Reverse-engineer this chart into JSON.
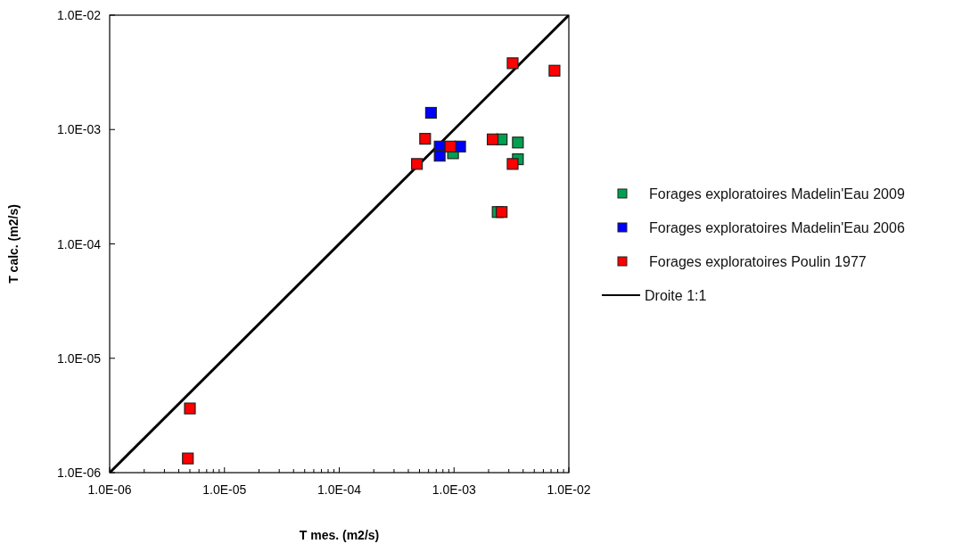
{
  "chart_data": {
    "type": "scatter",
    "xlabel": "T mes. (m2/s)",
    "ylabel": "T calc. (m2/s)",
    "log": "xy",
    "marker": "square",
    "legend": "right",
    "grid": false,
    "xlim": [
      1e-06,
      0.01
    ],
    "ylim": [
      1e-06,
      0.01
    ],
    "xticks": [
      {
        "value": 1e-06,
        "label": "1.0E-06"
      },
      {
        "value": 2e-06,
        "label": null
      },
      {
        "value": 3e-06,
        "label": null
      },
      {
        "value": 4e-06,
        "label": null
      },
      {
        "value": 5e-06,
        "label": null
      },
      {
        "value": 6e-06,
        "label": null
      },
      {
        "value": 7e-06,
        "label": null
      },
      {
        "value": 8e-06,
        "label": null
      },
      {
        "value": 9e-06,
        "label": null
      },
      {
        "value": 1e-05,
        "label": "1.0E-05"
      },
      {
        "value": 2e-05,
        "label": null
      },
      {
        "value": 3e-05,
        "label": null
      },
      {
        "value": 4e-05,
        "label": null
      },
      {
        "value": 5e-05,
        "label": null
      },
      {
        "value": 6e-05,
        "label": null
      },
      {
        "value": 7e-05,
        "label": null
      },
      {
        "value": 8e-05,
        "label": null
      },
      {
        "value": 9e-05,
        "label": null
      },
      {
        "value": 0.0001,
        "label": "1.0E-04"
      },
      {
        "value": 0.0002,
        "label": null
      },
      {
        "value": 0.0003,
        "label": null
      },
      {
        "value": 0.0004,
        "label": null
      },
      {
        "value": 0.0005,
        "label": null
      },
      {
        "value": 0.0006,
        "label": null
      },
      {
        "value": 0.0007,
        "label": null
      },
      {
        "value": 0.0008,
        "label": null
      },
      {
        "value": 0.0009,
        "label": null
      },
      {
        "value": 0.001,
        "label": "1.0E-03"
      },
      {
        "value": 0.002,
        "label": null
      },
      {
        "value": 0.003,
        "label": null
      },
      {
        "value": 0.004,
        "label": null
      },
      {
        "value": 0.005,
        "label": null
      },
      {
        "value": 0.006,
        "label": null
      },
      {
        "value": 0.007,
        "label": null
      },
      {
        "value": 0.008,
        "label": null
      },
      {
        "value": 0.009,
        "label": null
      },
      {
        "value": 0.01,
        "label": "1.0E-02"
      }
    ],
    "yticks": [
      {
        "value": 1e-06,
        "label": "1.0E-06"
      },
      {
        "value": 1e-05,
        "label": "1.0E-05"
      },
      {
        "value": 0.0001,
        "label": "1.0E-04"
      },
      {
        "value": 0.001,
        "label": "1.0E-03"
      },
      {
        "value": 0.01,
        "label": "1.0E-02"
      }
    ],
    "series": [
      {
        "name": "Forages exploratoires Madelin'Eau 2009",
        "color": "#00a050",
        "x": [
          0.00098,
          0.0026,
          0.0036,
          0.0036,
          0.0024
        ],
        "values": [
          0.00062,
          0.00082,
          0.00077,
          0.00055,
          0.00019
        ]
      },
      {
        "name": "Forages exploratoires Madelin'Eau 2006",
        "color": "#0000ff",
        "x": [
          0.00063,
          0.00075,
          0.00075,
          0.00113
        ],
        "values": [
          0.0014,
          0.00071,
          0.00059,
          0.00071
        ]
      },
      {
        "name": "Forages exploratoires Poulin 1977",
        "color": "#ff0000",
        "x": [
          0.00324,
          0.0075,
          0.00056,
          0.00093,
          0.000475,
          0.00217,
          0.00324,
          0.0026,
          5e-06,
          4.8e-06
        ],
        "values": [
          0.0038,
          0.00327,
          0.00083,
          0.00071,
          0.0005,
          0.00082,
          0.0005,
          0.00019,
          3.64e-06,
          1.33e-06
        ]
      },
      {
        "name": "Droite 1:1",
        "type": "line",
        "color": "#000000",
        "marker": "none",
        "x": [
          1e-06,
          0.01
        ],
        "values": [
          1e-06,
          0.01
        ]
      }
    ]
  }
}
